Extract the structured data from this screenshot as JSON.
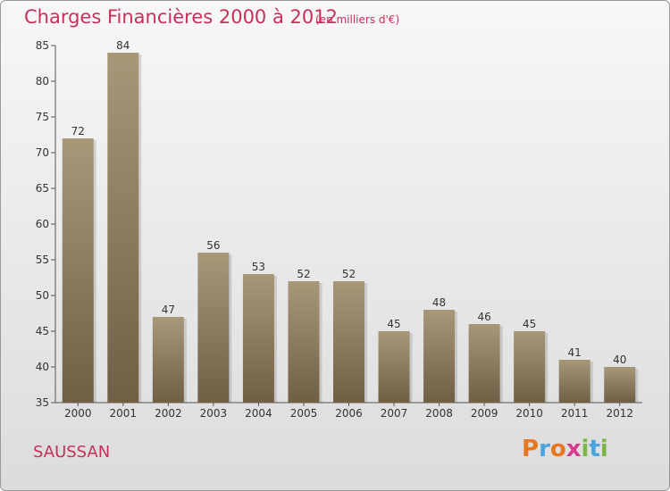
{
  "chart_data": {
    "type": "bar",
    "title": "Charges Financières 2000 à 2012",
    "subtitle": "(en milliers d'€)",
    "categories": [
      "2000",
      "2001",
      "2002",
      "2003",
      "2004",
      "2005",
      "2006",
      "2007",
      "2008",
      "2009",
      "2010",
      "2011",
      "2012"
    ],
    "values": [
      72,
      84,
      47,
      56,
      53,
      52,
      52,
      45,
      48,
      46,
      45,
      41,
      40
    ],
    "ylim": [
      35,
      85
    ],
    "yticks": [
      35,
      40,
      45,
      50,
      55,
      60,
      65,
      70,
      75,
      80,
      85
    ],
    "grid": false,
    "bar_color": "#8a7a5e",
    "title_color": "#c8305a"
  },
  "footer": {
    "city": "SAUSSAN",
    "logo_letters": [
      {
        "ch": "P",
        "color": "#e87722"
      },
      {
        "ch": "r",
        "color": "#4aa3df"
      },
      {
        "ch": "o",
        "color": "#e87722"
      },
      {
        "ch": "x",
        "color": "#d93a8e"
      },
      {
        "ch": "i",
        "color": "#7ab648"
      },
      {
        "ch": "t",
        "color": "#4aa3df"
      },
      {
        "ch": "i",
        "color": "#7ab648"
      }
    ]
  }
}
